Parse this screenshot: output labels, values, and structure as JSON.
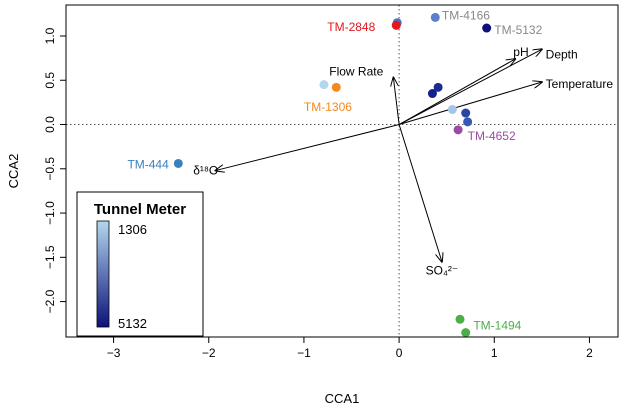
{
  "chart_data": {
    "type": "scatter",
    "title": "",
    "xlabel": "CCA1",
    "ylabel": "CCA2",
    "xlim": [
      -3.5,
      2.3
    ],
    "ylim": [
      -2.4,
      1.35
    ],
    "xticks": [
      -3,
      -2,
      -1,
      0,
      1,
      2
    ],
    "yticks": [
      -2.0,
      -1.5,
      -1.0,
      -0.5,
      0.0,
      0.5,
      1.0
    ],
    "ytick_labels": [
      "−2.0",
      "−1.5",
      "−1.0",
      "−0.5",
      "0.0",
      "0.5",
      "1.0"
    ],
    "xtick_labels": [
      "−3",
      "−2",
      "−1",
      "0",
      "1",
      "2"
    ],
    "reference_lines": {
      "x": 0,
      "y": 0,
      "style": "dotted"
    },
    "points": [
      {
        "x": -0.02,
        "y": 1.15,
        "color": "#4a72c4"
      },
      {
        "x": -0.03,
        "y": 1.12,
        "color": "#e8141c"
      },
      {
        "x": 0.38,
        "y": 1.21,
        "color": "#5b7fce"
      },
      {
        "x": 0.92,
        "y": 1.09,
        "color": "#0d127a"
      },
      {
        "x": -0.79,
        "y": 0.45,
        "color": "#b3d7ef"
      },
      {
        "x": -0.66,
        "y": 0.42,
        "color": "#f28a1e"
      },
      {
        "x": 0.41,
        "y": 0.42,
        "color": "#1c2a94"
      },
      {
        "x": 0.35,
        "y": 0.35,
        "color": "#15208a"
      },
      {
        "x": 0.56,
        "y": 0.17,
        "color": "#a4c4e8"
      },
      {
        "x": 0.7,
        "y": 0.13,
        "color": "#2a45a8"
      },
      {
        "x": 0.72,
        "y": 0.03,
        "color": "#3658b4"
      },
      {
        "x": 0.62,
        "y": -0.06,
        "color": "#9b4aa6"
      },
      {
        "x": -2.32,
        "y": -0.44,
        "color": "#3a7fc0"
      },
      {
        "x": 0.64,
        "y": -2.2,
        "color": "#4cae48"
      },
      {
        "x": 0.7,
        "y": -2.35,
        "color": "#4cae48"
      }
    ],
    "point_labels": [
      {
        "text": "TM-2848",
        "x": -0.25,
        "y": 1.1,
        "anchor": "end",
        "color": "#e8141c"
      },
      {
        "text": "TM-4166",
        "x": 0.45,
        "y": 1.23,
        "anchor": "start",
        "color": "#888888"
      },
      {
        "text": "TM-5132",
        "x": 1.0,
        "y": 1.07,
        "anchor": "start",
        "color": "#888888"
      },
      {
        "text": "TM-1306",
        "x": -1.0,
        "y": 0.2,
        "anchor": "start",
        "color": "#f28a1e"
      },
      {
        "text": "TM-4652",
        "x": 0.72,
        "y": -0.13,
        "anchor": "start",
        "color": "#9b4aa6"
      },
      {
        "text": "TM-444",
        "x": -2.42,
        "y": -0.45,
        "anchor": "end",
        "color": "#3a7fc0"
      },
      {
        "text": "TM-1494",
        "x": 0.78,
        "y": -2.27,
        "anchor": "start",
        "color": "#4cae48"
      }
    ],
    "vectors": [
      {
        "name": "pH",
        "x": 1.22,
        "y": 0.74,
        "label_x": 1.2,
        "label_y": 0.82,
        "anchor": "start"
      },
      {
        "name": "Depth",
        "x": 1.5,
        "y": 0.85,
        "label_x": 1.54,
        "label_y": 0.79,
        "anchor": "start"
      },
      {
        "name": "Temperature",
        "x": 1.5,
        "y": 0.48,
        "label_x": 1.54,
        "label_y": 0.46,
        "anchor": "start"
      },
      {
        "name": "Flow Rate",
        "x": -0.06,
        "y": 0.53,
        "label_x": -0.45,
        "label_y": 0.6,
        "anchor": "middle"
      },
      {
        "name": "δ¹⁸O",
        "x": -1.93,
        "y": -0.52,
        "label_x": -1.9,
        "label_y": -0.52,
        "anchor": "end"
      },
      {
        "name": "SO₄²⁻",
        "x": 0.45,
        "y": -1.55,
        "label_x": 0.45,
        "label_y": -1.65,
        "anchor": "middle"
      }
    ],
    "legend": {
      "title": "Tunnel Meter",
      "placement": "bottom-left",
      "min_label": "1306",
      "max_label": "5132",
      "color_top": "#b3d7ef",
      "color_bottom": "#0d127a"
    }
  }
}
